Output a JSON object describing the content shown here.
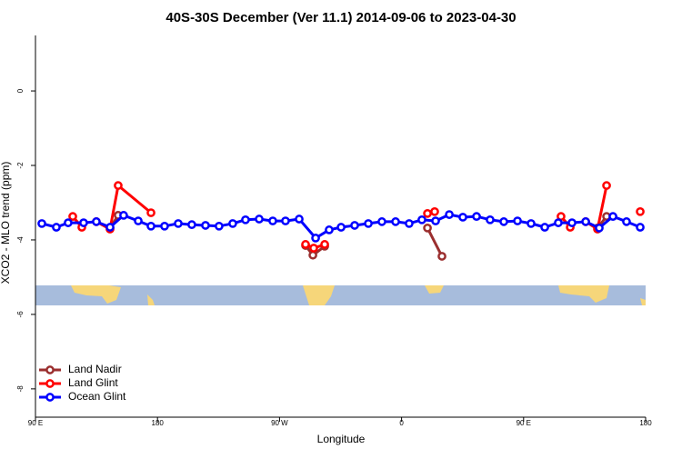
{
  "chart_data": {
    "type": "line",
    "title": "40S-30S December (Ver 11.1)   2014-09-06 to 2023-04-30",
    "xlabel": "Longitude",
    "ylabel": "XCO2 - MLO trend (ppm)",
    "xlim": [
      90,
      540
    ],
    "ylim": [
      -8.76,
      1.49
    ],
    "xticks": [
      {
        "value": 90,
        "label": "90 E"
      },
      180,
      {
        "value": 270,
        "label": "90 W"
      },
      {
        "value": 360,
        "label": "0"
      },
      {
        "value": 450,
        "label": "90 E"
      },
      {
        "value": 540,
        "label": "180"
      }
    ],
    "yticks": [
      0,
      -2,
      -4,
      -6,
      -8
    ],
    "legend": "bottom-left",
    "series": [
      {
        "name": "Land Nadir",
        "color": "#9b2f2f",
        "x": [
          145,
          151,
          null,
          289.2,
          294.6,
          303.3,
          null,
          379.1,
          389.8,
          null,
          504.5,
          511.2
        ],
        "values": [
          -3.68,
          -3.34,
          null,
          -4.15,
          -4.41,
          -4.17,
          null,
          -3.68,
          -4.44,
          null,
          -3.68,
          -3.37
        ]
      },
      {
        "name": "Land Glint",
        "color": "#ff0000",
        "x": [
          117.5,
          124.2,
          null,
          134.9,
          145,
          151,
          175.2,
          null,
          289.2,
          295.2,
          303.3,
          null,
          379.1,
          384.4,
          null,
          477.6,
          484.4,
          null,
          495.8,
          504.5,
          511.2,
          null,
          536
        ],
        "values": [
          -3.37,
          -3.66,
          null,
          -3.51,
          -3.71,
          -2.54,
          -3.27,
          null,
          -4.12,
          -4.22,
          -4.12,
          null,
          -3.29,
          -3.24,
          null,
          -3.37,
          -3.66,
          null,
          -3.51,
          -3.71,
          -2.54,
          null,
          -3.24
        ]
      },
      {
        "name": "Ocean Glint",
        "color": "#0000ff",
        "x": [
          94.7,
          105.4,
          114.1,
          125.5,
          134.9,
          145,
          155,
          165.8,
          175.2,
          185.2,
          195.3,
          205.3,
          215.4,
          225.4,
          235.5,
          244.9,
          255,
          265,
          274.4,
          284.5,
          296.6,
          306.6,
          315.4,
          325.4,
          335.5,
          345.5,
          355.6,
          365.6,
          375,
          385.1,
          395.2,
          405.2,
          415.3,
          425.3,
          435.4,
          445.5,
          455.5,
          465.6,
          475.6,
          485.7,
          495.8,
          505.8,
          515.9,
          525.9,
          536
        ],
        "values": [
          -3.56,
          -3.66,
          -3.54,
          -3.54,
          -3.51,
          -3.66,
          -3.34,
          -3.49,
          -3.63,
          -3.63,
          -3.56,
          -3.59,
          -3.61,
          -3.63,
          -3.56,
          -3.46,
          -3.44,
          -3.49,
          -3.49,
          -3.44,
          -3.95,
          -3.73,
          -3.66,
          -3.61,
          -3.56,
          -3.51,
          -3.51,
          -3.56,
          -3.46,
          -3.49,
          -3.32,
          -3.39,
          -3.37,
          -3.46,
          -3.51,
          -3.49,
          -3.56,
          -3.66,
          -3.54,
          -3.54,
          -3.51,
          -3.68,
          -3.37,
          -3.51,
          -3.66
        ]
      }
    ]
  }
}
